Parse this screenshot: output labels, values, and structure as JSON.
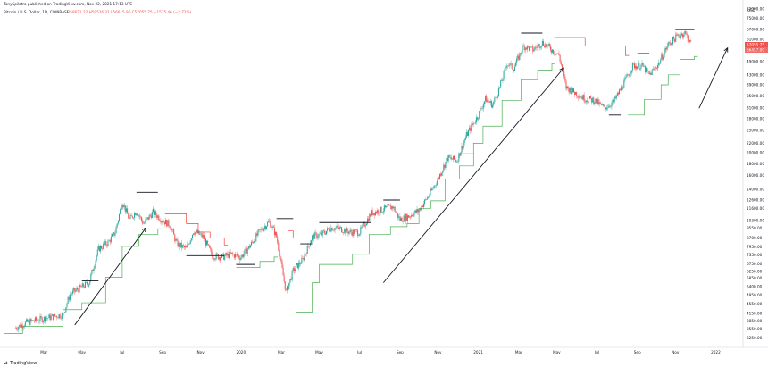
{
  "header": {
    "publisher": "TonySpilotro published on TradingView.com, Nov 22, 2021 17:13 UTC",
    "symbol": "Bitcoin / U.S. Dollar, 1D, COINBASE",
    "ohlc": "O58671.22  H59526.31  L56615.96  C57055.75  −1575.46 (−2.72%)",
    "price_tag_1": "57055.75",
    "price_tag_2": "56457.00",
    "footer_brand": "TradingView",
    "currency": "USD"
  },
  "colors": {
    "up": "#26a69a",
    "down": "#ef5350",
    "stop_up": "#4caf50",
    "stop_down": "#f44336",
    "level": "#131722",
    "arrow": "#131722"
  },
  "chart_data": {
    "type": "candlestick",
    "title": "",
    "xlabel": "",
    "ylabel": "",
    "scale": "log",
    "ylim": [
      3050,
      85000
    ],
    "x_tick_labels": [
      "Mar",
      "May",
      "Jul",
      "Sep",
      "Nov",
      "2020",
      "Mar",
      "May",
      "Jul",
      "Sep",
      "Nov",
      "2021",
      "Mar",
      "May",
      "Jul",
      "Sep",
      "Nov",
      "2022"
    ],
    "x_tick_months": [
      2019.17,
      2019.33,
      2019.5,
      2019.67,
      2019.83,
      2020.0,
      2020.17,
      2020.33,
      2020.5,
      2020.67,
      2020.83,
      2021.0,
      2021.17,
      2021.33,
      2021.5,
      2021.67,
      2021.83,
      2022.0
    ],
    "y_tick_labels": [
      "82000.00",
      "75000.00",
      "67000.00",
      "61000.00",
      "55000.00",
      "49000.00",
      "43000.00",
      "39000.00",
      "35000.00",
      "31000.00",
      "28000.00",
      "25000.00",
      "22000.00",
      "20000.00",
      "18000.00",
      "16000.00",
      "14000.00",
      "12600.00",
      "11600.00",
      "10300.00",
      "9550.00",
      "8700.00",
      "7950.00",
      "7350.00",
      "6750.00",
      "6250.00",
      "5850.00",
      "5400.00",
      "4950.00",
      "4550.00",
      "4150.00",
      "3850.00",
      "3550.00",
      "3250.00"
    ],
    "price_series": [
      [
        2019.05,
        3600
      ],
      [
        2019.1,
        3800
      ],
      [
        2019.15,
        3900
      ],
      [
        2019.2,
        4000
      ],
      [
        2019.25,
        4100
      ],
      [
        2019.28,
        5000
      ],
      [
        2019.32,
        5300
      ],
      [
        2019.36,
        5600
      ],
      [
        2019.4,
        7800
      ],
      [
        2019.44,
        8300
      ],
      [
        2019.47,
        9200
      ],
      [
        2019.5,
        12400
      ],
      [
        2019.53,
        10400
      ],
      [
        2019.56,
        11300
      ],
      [
        2019.59,
        10000
      ],
      [
        2019.63,
        11200
      ],
      [
        2019.67,
        10300
      ],
      [
        2019.7,
        9900
      ],
      [
        2019.73,
        8200
      ],
      [
        2019.77,
        7800
      ],
      [
        2019.8,
        9300
      ],
      [
        2019.84,
        8800
      ],
      [
        2019.88,
        7300
      ],
      [
        2019.92,
        7200
      ],
      [
        2019.96,
        7400
      ],
      [
        2020.0,
        7200
      ],
      [
        2020.04,
        8100
      ],
      [
        2020.08,
        9300
      ],
      [
        2020.12,
        10200
      ],
      [
        2020.15,
        8800
      ],
      [
        2020.19,
        5100
      ],
      [
        2020.22,
        6300
      ],
      [
        2020.26,
        7000
      ],
      [
        2020.3,
        8800
      ],
      [
        2020.34,
        9000
      ],
      [
        2020.38,
        9600
      ],
      [
        2020.42,
        9500
      ],
      [
        2020.46,
        9200
      ],
      [
        2020.5,
        9200
      ],
      [
        2020.55,
        11100
      ],
      [
        2020.6,
        11500
      ],
      [
        2020.64,
        11800
      ],
      [
        2020.67,
        10400
      ],
      [
        2020.71,
        10800
      ],
      [
        2020.75,
        11400
      ],
      [
        2020.79,
        13100
      ],
      [
        2020.83,
        15500
      ],
      [
        2020.87,
        19000
      ],
      [
        2020.91,
        18600
      ],
      [
        2020.95,
        23800
      ],
      [
        2021.0,
        29000
      ],
      [
        2021.03,
        34000
      ],
      [
        2021.06,
        32000
      ],
      [
        2021.09,
        38000
      ],
      [
        2021.12,
        48000
      ],
      [
        2021.15,
        46000
      ],
      [
        2021.19,
        57000
      ],
      [
        2021.23,
        55000
      ],
      [
        2021.27,
        59000
      ],
      [
        2021.3,
        56000
      ],
      [
        2021.34,
        52000
      ],
      [
        2021.37,
        38000
      ],
      [
        2021.41,
        36000
      ],
      [
        2021.45,
        34000
      ],
      [
        2021.49,
        33500
      ],
      [
        2021.53,
        31000
      ],
      [
        2021.57,
        33000
      ],
      [
        2021.61,
        39000
      ],
      [
        2021.65,
        47000
      ],
      [
        2021.69,
        47000
      ],
      [
        2021.72,
        43000
      ],
      [
        2021.76,
        48000
      ],
      [
        2021.8,
        58000
      ],
      [
        2021.84,
        63000
      ],
      [
        2021.87,
        65000
      ],
      [
        2021.9,
        57000
      ]
    ],
    "stop_steps": [
      [
        [
          2019.0,
          3400
        ],
        [
          2019.08,
          3650
        ],
        [
          2019.25,
          4300
        ],
        [
          2019.33,
          4600
        ],
        [
          2019.43,
          5900
        ],
        [
          2019.5,
          8000
        ],
        [
          2019.57,
          9000
        ],
        [
          2019.65,
          9500
        ]
      ],
      [
        [
          2019.68,
          11000
        ],
        [
          2019.77,
          10000
        ],
        [
          2019.82,
          9200
        ],
        [
          2019.87,
          8700
        ],
        [
          2019.93,
          8100
        ]
      ],
      [
        [
          2019.98,
          6500
        ],
        [
          2020.08,
          6900
        ],
        [
          2020.14,
          7200
        ]
      ],
      [
        [
          2020.2,
          9300
        ],
        [
          2020.22,
          8700
        ]
      ],
      [
        [
          2020.23,
          4200
        ],
        [
          2020.3,
          5600
        ],
        [
          2020.33,
          6700
        ],
        [
          2020.47,
          7400
        ],
        [
          2020.54,
          9000
        ],
        [
          2020.63,
          9700
        ],
        [
          2020.7,
          10000
        ],
        [
          2020.75,
          11600
        ],
        [
          2020.8,
          12500
        ],
        [
          2020.86,
          15500
        ],
        [
          2020.92,
          17600
        ],
        [
          2020.98,
          22000
        ],
        [
          2021.02,
          26000
        ],
        [
          2021.1,
          33500
        ],
        [
          2021.18,
          41000
        ],
        [
          2021.25,
          45000
        ],
        [
          2021.31,
          48000
        ]
      ],
      [
        [
          2021.32,
          62000
        ],
        [
          2021.45,
          57000
        ],
        [
          2021.62,
          52000
        ]
      ],
      [
        [
          2021.63,
          29000
        ],
        [
          2021.7,
          33800
        ],
        [
          2021.77,
          39000
        ],
        [
          2021.8,
          43000
        ],
        [
          2021.85,
          50000
        ],
        [
          2021.91,
          51500
        ]
      ]
    ],
    "levels": [
      {
        "x0": 2019.33,
        "x1": 2019.4,
        "price": 5700
      },
      {
        "x0": 2019.56,
        "x1": 2019.65,
        "price": 13600
      },
      {
        "x0": 2019.77,
        "x1": 2019.93,
        "price": 7300
      },
      {
        "x0": 2019.98,
        "x1": 2020.06,
        "price": 6700
      },
      {
        "x0": 2020.15,
        "x1": 2020.22,
        "price": 10500
      },
      {
        "x0": 2020.25,
        "x1": 2020.3,
        "price": 8200
      },
      {
        "x0": 2020.33,
        "x1": 2020.55,
        "price": 10100
      },
      {
        "x0": 2020.6,
        "x1": 2020.67,
        "price": 12600
      },
      {
        "x0": 2020.92,
        "x1": 2020.98,
        "price": 19800
      },
      {
        "x0": 2021.18,
        "x1": 2021.27,
        "price": 64800
      },
      {
        "x0": 2021.55,
        "x1": 2021.6,
        "price": 29000
      },
      {
        "x0": 2021.67,
        "x1": 2021.72,
        "price": 53000
      },
      {
        "x0": 2021.83,
        "x1": 2021.91,
        "price": 67000
      }
    ],
    "arrows": [
      {
        "from": [
          2019.3,
          3700
        ],
        "to": [
          2019.6,
          9600
        ]
      },
      {
        "from": [
          2020.6,
          5600
        ],
        "to": [
          2021.36,
          46000
        ]
      },
      {
        "from": [
          2021.93,
          31000
        ],
        "to": [
          2022.05,
          56000
        ]
      }
    ]
  }
}
